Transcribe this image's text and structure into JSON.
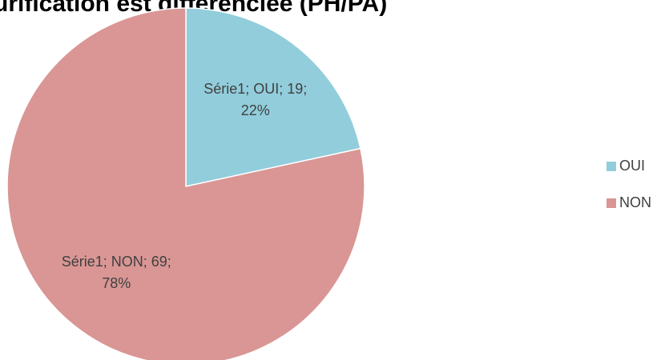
{
  "chart_data": {
    "type": "pie",
    "title": "urification est différenciée (PH/PA)",
    "series_name": "Série1",
    "categories": [
      "OUI",
      "NON"
    ],
    "values": [
      19,
      69
    ],
    "value_labels": [
      "Série1; OUI; 19; 22%",
      "Série1; NON; 69; 78%"
    ],
    "colors": [
      "#92cddc",
      "#d99694"
    ],
    "legend": "right"
  }
}
